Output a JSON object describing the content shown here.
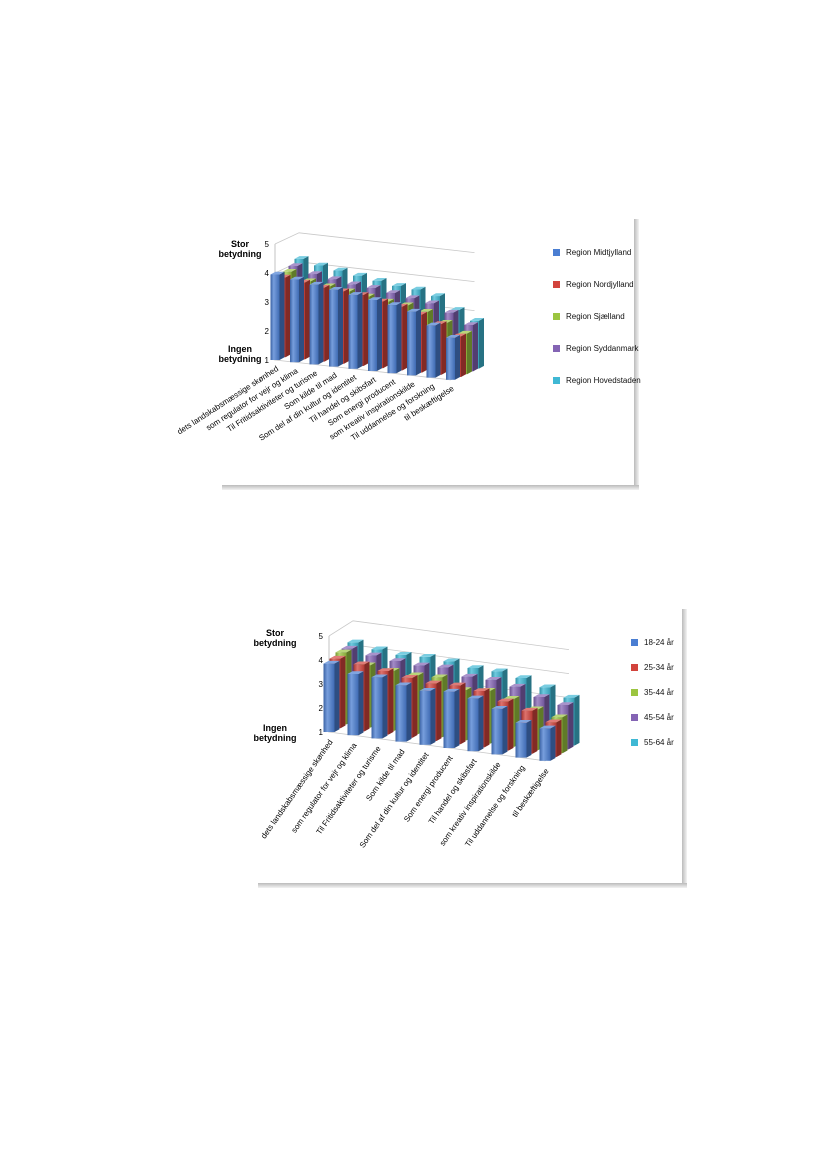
{
  "chart_data": [
    {
      "type": "bar",
      "ylabel_top": "Stor betydning",
      "ylabel_bottom": "Ingen betydning",
      "ylim": [
        1,
        5
      ],
      "yticks": [
        "1",
        "2",
        "3",
        "4",
        "5"
      ],
      "categories": [
        "dets landskabsmæssige skønhed",
        "som regulator for vejr og klima",
        "Til Fritidsaktiviteter og turisme",
        "Som kilde til mad",
        "Som del af din kultur og identitet",
        "Til handel og skibsfart",
        "Som energi producent",
        "som kreativ inspirationskilde",
        "Til uddannelse og forskning",
        "til beskæftigelse"
      ],
      "series": [
        {
          "name": "Region Midtjylland",
          "color": "#4a7ed2",
          "values": [
            3.95,
            3.85,
            3.75,
            3.65,
            3.55,
            3.45,
            3.35,
            3.2,
            2.8,
            2.45
          ]
        },
        {
          "name": "Region Nordjylland",
          "color": "#d2433c",
          "values": [
            3.75,
            3.65,
            3.55,
            3.5,
            3.45,
            3.3,
            3.2,
            3.0,
            2.75,
            2.4
          ]
        },
        {
          "name": "Region Sjælland",
          "color": "#9bc540",
          "values": [
            3.85,
            3.6,
            3.5,
            3.4,
            3.3,
            3.2,
            3.15,
            3.0,
            2.7,
            2.4
          ]
        },
        {
          "name": "Region Syddanmark",
          "color": "#8464b4",
          "values": [
            3.95,
            3.75,
            3.65,
            3.55,
            3.5,
            3.4,
            3.3,
            3.2,
            2.95,
            2.6
          ]
        },
        {
          "name": "Region Hovedstaden",
          "color": "#3fb8d4",
          "values": [
            4.1,
            3.95,
            3.85,
            3.75,
            3.65,
            3.55,
            3.5,
            3.35,
            2.95,
            2.65
          ]
        }
      ]
    },
    {
      "type": "bar",
      "ylabel_top": "Stor betydning",
      "ylabel_bottom": "Ingen betydning",
      "ylim": [
        1,
        5
      ],
      "yticks": [
        "1",
        "2",
        "3",
        "4",
        "5"
      ],
      "categories": [
        "dets landskabsmæssige skønhed",
        "som regulator for vejr og klima",
        "Til Fritidsaktiviteter og turisme",
        "Som kilde til mad",
        "Som del af din kultur og identitet",
        "Som energi producent",
        "Til handel og skibsfart",
        "som kreativ inspirationskilde",
        "Til uddannelse og forskning",
        "til beskæftigelse"
      ],
      "series": [
        {
          "name": "18-24 år",
          "color": "#4a7ed2",
          "values": [
            3.85,
            3.55,
            3.55,
            3.35,
            3.25,
            3.35,
            3.2,
            2.9,
            2.45,
            2.35
          ]
        },
        {
          "name": "25-34 år",
          "color": "#d2433c",
          "values": [
            3.9,
            3.8,
            3.65,
            3.5,
            3.4,
            3.45,
            3.35,
            3.05,
            2.8,
            2.45
          ]
        },
        {
          "name": "35-44 år",
          "color": "#9bc540",
          "values": [
            4.0,
            3.6,
            3.5,
            3.45,
            3.5,
            3.1,
            3.2,
            3.0,
            2.7,
            2.5
          ]
        },
        {
          "name": "45-54 år",
          "color": "#8464b4",
          "values": [
            4.0,
            3.85,
            3.75,
            3.7,
            3.75,
            3.5,
            3.5,
            3.35,
            3.05,
            2.85
          ]
        },
        {
          "name": "55-64 år",
          "color": "#3fb8d4",
          "values": [
            4.1,
            3.95,
            3.85,
            3.9,
            3.85,
            3.7,
            3.7,
            3.55,
            3.3,
            3.0
          ]
        }
      ]
    }
  ]
}
